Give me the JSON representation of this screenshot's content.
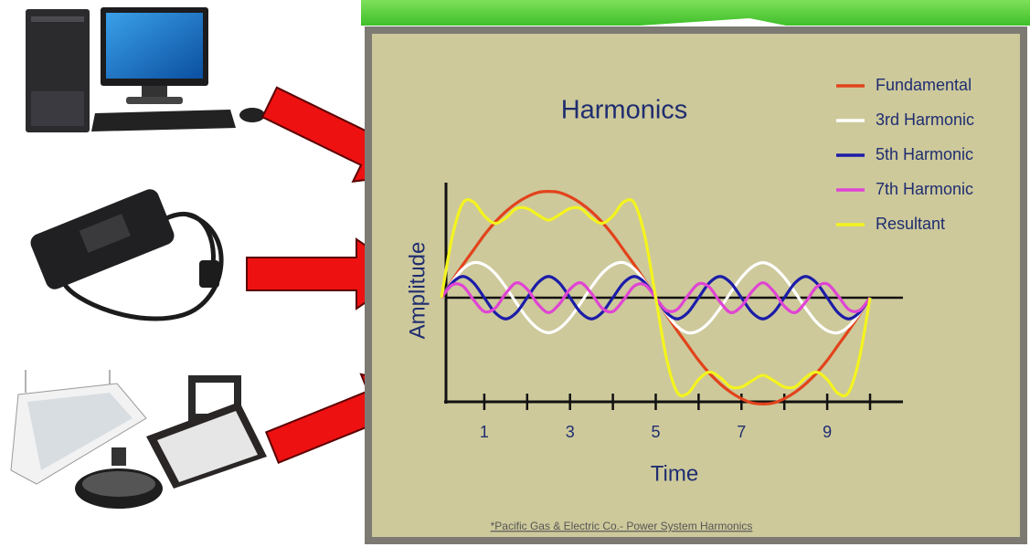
{
  "chart_data": {
    "type": "line",
    "title": "Harmonics",
    "xlabel": "Time",
    "ylabel": "Amplitude",
    "source": "*Pacific Gas & Electric Co.- Power System Harmonics",
    "xlim": [
      0,
      10.8
    ],
    "ylim": [
      -1.1,
      1.1
    ],
    "xticks": [
      1,
      3,
      5,
      7,
      9
    ],
    "xminorticks": [
      2,
      4,
      6,
      8,
      10
    ],
    "x": [
      0,
      0.25,
      0.5,
      0.75,
      1,
      1.25,
      1.5,
      1.75,
      2,
      2.25,
      2.5,
      2.75,
      3,
      3.25,
      3.5,
      3.75,
      4,
      4.25,
      4.5,
      4.75,
      5,
      5.25,
      5.5,
      5.75,
      6,
      6.25,
      6.5,
      6.75,
      7,
      7.25,
      7.5,
      7.75,
      8,
      8.25,
      8.5,
      8.75,
      9,
      9.25,
      9.5,
      9.75,
      10
    ],
    "series": [
      {
        "name": "Fundamental",
        "color": "#e2431c",
        "values": [
          0,
          0.16,
          0.31,
          0.45,
          0.59,
          0.71,
          0.81,
          0.89,
          0.95,
          0.99,
          1,
          0.99,
          0.95,
          0.89,
          0.81,
          0.71,
          0.59,
          0.45,
          0.31,
          0.16,
          0,
          -0.16,
          -0.31,
          -0.45,
          -0.59,
          -0.71,
          -0.81,
          -0.89,
          -0.95,
          -0.99,
          -1,
          -0.99,
          -0.95,
          -0.89,
          -0.81,
          -0.71,
          -0.59,
          -0.45,
          -0.31,
          -0.16,
          0
        ]
      },
      {
        "name": "3rd Harmonic",
        "color": "#ffffff",
        "values": [
          0,
          0.15,
          0.27,
          0.33,
          0.31,
          0.23,
          0.1,
          -0.05,
          -0.19,
          -0.29,
          -0.33,
          -0.29,
          -0.19,
          -0.05,
          0.1,
          0.23,
          0.31,
          0.33,
          0.27,
          0.15,
          0,
          -0.15,
          -0.27,
          -0.33,
          -0.31,
          -0.23,
          -0.1,
          0.05,
          0.19,
          0.29,
          0.33,
          0.29,
          0.19,
          0.05,
          -0.1,
          -0.23,
          -0.31,
          -0.33,
          -0.27,
          -0.15,
          0
        ]
      },
      {
        "name": "5th Harmonic",
        "color": "#1c1ca8",
        "values": [
          0,
          0.14,
          0.2,
          0.14,
          0,
          -0.14,
          -0.2,
          -0.14,
          0,
          0.14,
          0.2,
          0.14,
          0,
          -0.14,
          -0.2,
          -0.14,
          0,
          0.14,
          0.2,
          0.14,
          0,
          -0.14,
          -0.2,
          -0.14,
          0,
          0.14,
          0.2,
          0.14,
          0,
          -0.14,
          -0.2,
          -0.14,
          0,
          0.14,
          0.2,
          0.14,
          0,
          -0.14,
          -0.2,
          -0.14,
          0
        ]
      },
      {
        "name": "7th Harmonic",
        "color": "#e044d4",
        "values": [
          0,
          0.12,
          0.11,
          -0.02,
          -0.13,
          -0.1,
          0.04,
          0.14,
          0.08,
          -0.06,
          -0.14,
          -0.06,
          0.08,
          0.14,
          0.04,
          -0.1,
          -0.13,
          -0.02,
          0.11,
          0.12,
          0,
          -0.12,
          -0.11,
          0.02,
          0.13,
          0.1,
          -0.04,
          -0.14,
          -0.08,
          0.06,
          0.14,
          0.06,
          -0.08,
          -0.14,
          -0.04,
          0.1,
          0.13,
          0.02,
          -0.11,
          -0.12,
          0
        ]
      },
      {
        "name": "Resultant",
        "color": "#f4f41e",
        "values": [
          0,
          0.57,
          0.89,
          0.9,
          0.77,
          0.7,
          0.75,
          0.84,
          0.84,
          0.78,
          0.73,
          0.78,
          0.84,
          0.84,
          0.75,
          0.7,
          0.77,
          0.9,
          0.89,
          0.57,
          0,
          -0.57,
          -0.89,
          -0.9,
          -0.77,
          -0.7,
          -0.75,
          -0.84,
          -0.84,
          -0.78,
          -0.73,
          -0.78,
          -0.84,
          -0.84,
          -0.75,
          -0.7,
          -0.77,
          -0.9,
          -0.89,
          -0.57,
          0
        ]
      }
    ]
  }
}
